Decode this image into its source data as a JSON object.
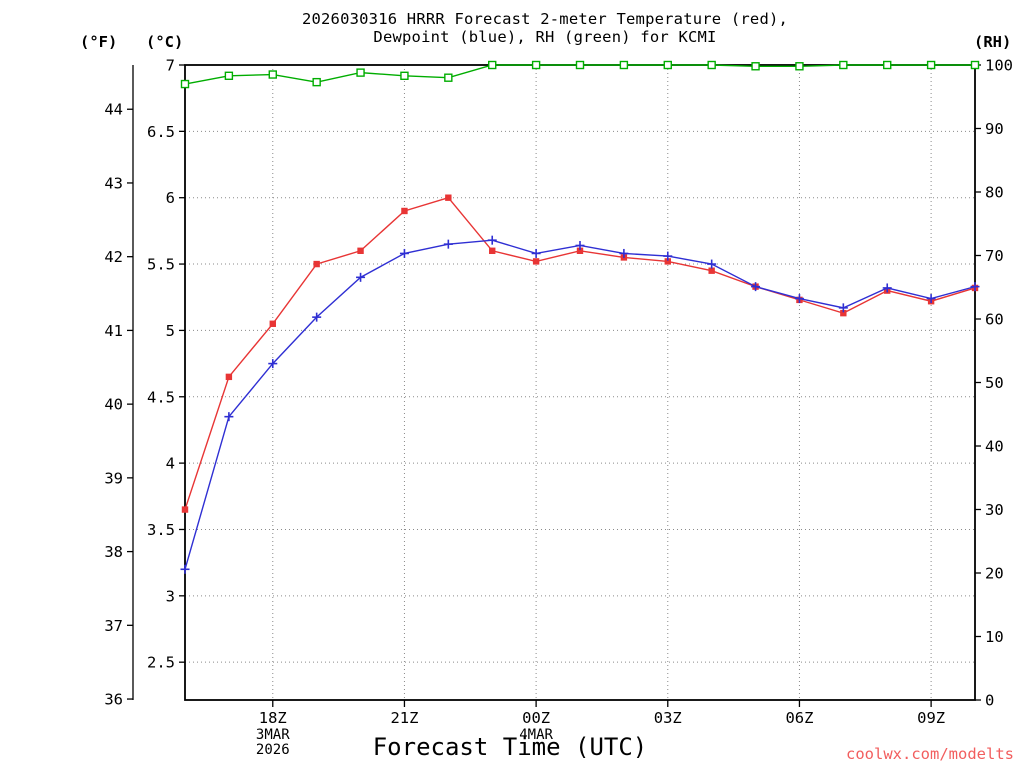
{
  "title": {
    "line1": "2026030316 HRRR Forecast 2-meter Temperature (red),",
    "line2": "Dewpoint (blue), RH (green) for KCMI"
  },
  "axis_labels": {
    "fahrenheit": "(°F)",
    "celsius": "(°C)",
    "rh": "(RH)"
  },
  "xlabel": "Forecast Time (UTC)",
  "watermark": "coolwx.com/modelts",
  "x_axis": {
    "tick_hours": [
      18,
      21,
      24,
      27,
      30,
      33
    ],
    "tick_labels": [
      "18Z",
      "21Z",
      "00Z",
      "03Z",
      "06Z",
      "09Z"
    ],
    "date_labels": [
      {
        "hour": 18,
        "lines": [
          "3MAR",
          "2026"
        ]
      },
      {
        "hour": 24,
        "lines": [
          "4MAR"
        ]
      }
    ]
  },
  "chart_data": {
    "type": "line",
    "station": "KCMI",
    "model_run": "2026030316",
    "x_hours_utc": [
      "16Z",
      "17Z",
      "18Z",
      "19Z",
      "20Z",
      "21Z",
      "22Z",
      "23Z",
      "00Z",
      "01Z",
      "02Z",
      "03Z",
      "04Z",
      "05Z",
      "06Z",
      "07Z",
      "08Z",
      "09Z",
      "10Z"
    ],
    "hours": [
      16,
      17,
      18,
      19,
      20,
      21,
      22,
      23,
      24,
      25,
      26,
      27,
      28,
      29,
      30,
      31,
      32,
      33,
      34
    ],
    "x_range_hours": [
      16,
      34
    ],
    "c_range": [
      2.215,
      7.0
    ],
    "rh_range": [
      0,
      100
    ],
    "c_axis_ticks": [
      7,
      6.5,
      6,
      5.5,
      5,
      4.5,
      4,
      3.5,
      3,
      2.5
    ],
    "f_axis_ticks": [
      44,
      43,
      42,
      41,
      40,
      39,
      38,
      37,
      36
    ],
    "rh_axis_ticks": [
      100,
      90,
      80,
      70,
      60,
      50,
      40,
      30,
      20,
      10,
      0
    ],
    "grid": true,
    "series": [
      {
        "name": "RH",
        "data_name": "rh",
        "unit": "%",
        "axis": "rh",
        "color": "#00ad00",
        "marker": "open-square",
        "values": [
          97.0,
          98.3,
          98.5,
          97.3,
          98.8,
          98.3,
          98.0,
          100,
          100,
          100,
          100,
          100,
          100,
          99.8,
          99.8,
          100,
          100,
          100,
          100
        ]
      },
      {
        "name": "2-meter Temperature",
        "data_name": "temperature",
        "unit": "°C",
        "axis": "c",
        "color": "#e83535",
        "marker": "filled-square",
        "values": [
          3.65,
          4.65,
          5.05,
          5.5,
          5.6,
          5.9,
          6.0,
          5.6,
          5.52,
          5.6,
          5.55,
          5.52,
          5.45,
          5.33,
          5.23,
          5.13,
          5.3,
          5.22,
          5.32
        ]
      },
      {
        "name": "Dewpoint",
        "data_name": "dewpoint",
        "unit": "°C",
        "axis": "c",
        "color": "#2f2fd3",
        "marker": "plus",
        "values": [
          3.2,
          4.35,
          4.75,
          5.1,
          5.4,
          5.58,
          5.65,
          5.68,
          5.58,
          5.64,
          5.58,
          5.56,
          5.5,
          5.33,
          5.24,
          5.17,
          5.32,
          5.24,
          5.33
        ]
      }
    ]
  }
}
